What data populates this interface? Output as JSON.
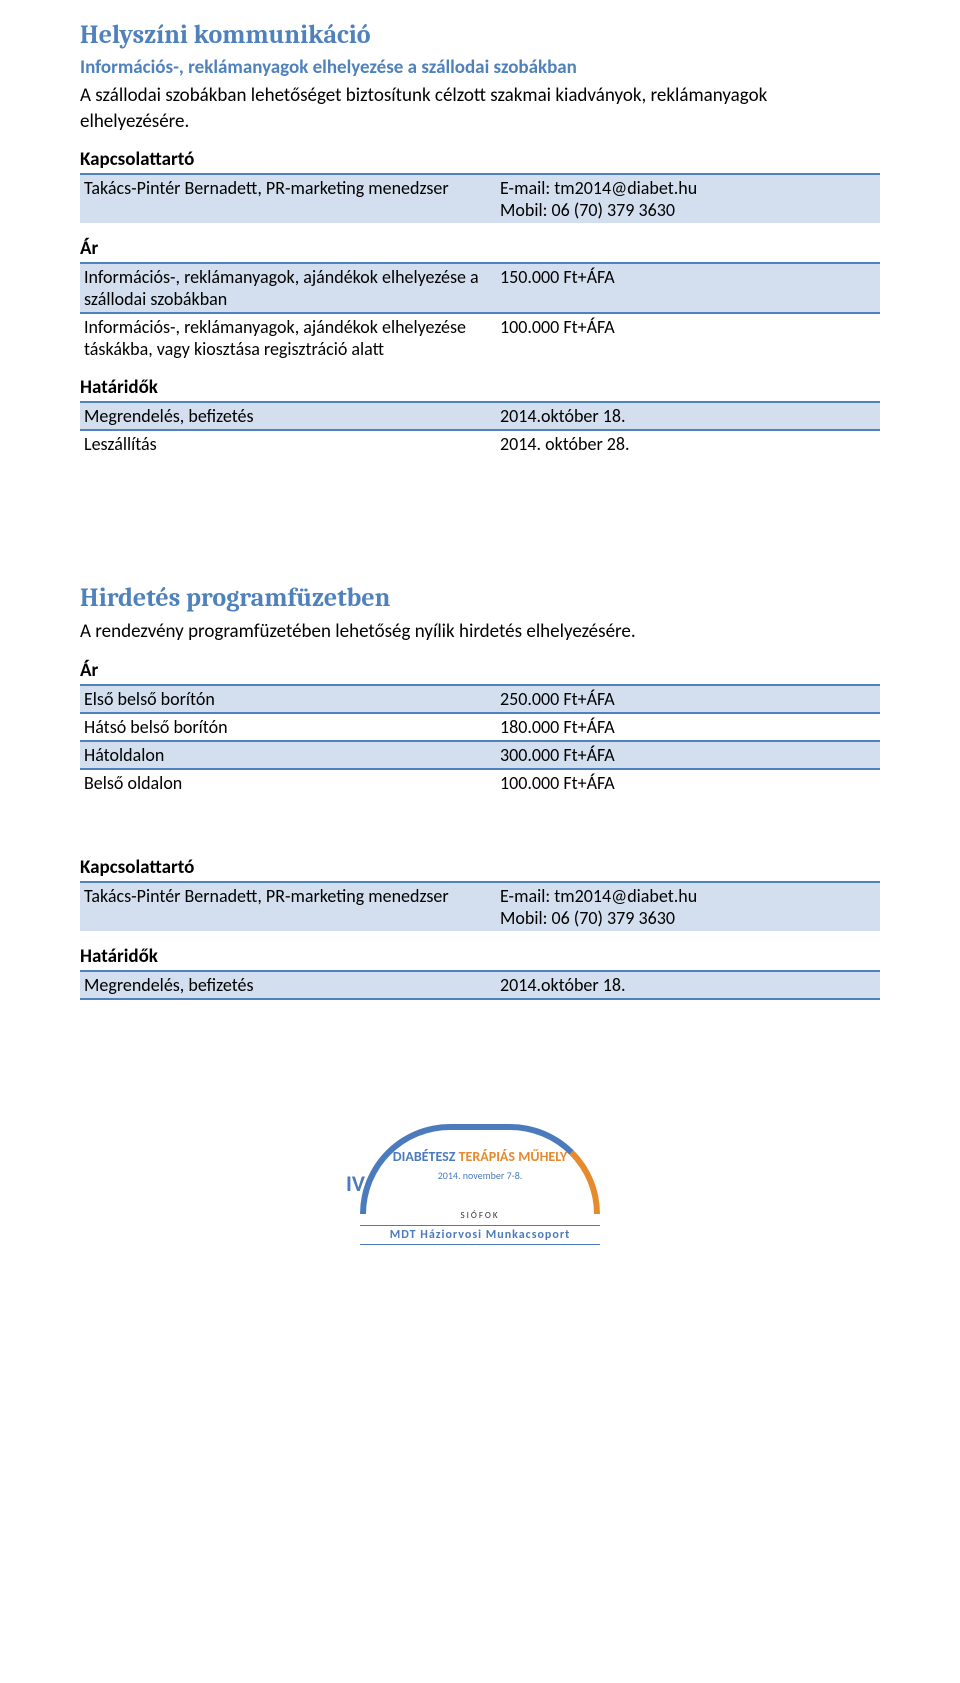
{
  "colors": {
    "title_color": "#4f81bd",
    "subtitle_color": "#4f81bd",
    "border_color": "#4f81bd",
    "row_shade": "#d3dfee",
    "body_text": "#000000"
  },
  "section1": {
    "title": "Helyszíni kommunikáció",
    "subtitle": "Információs-, reklámanyagok elhelyezése a szállodai szobákban",
    "body": "A szállodai szobákban lehetőséget biztosítunk célzott szakmai kiadványok, reklámanyagok elhelyezésére.",
    "contact_heading": "Kapcsolattartó",
    "contact_rows": [
      {
        "left": "Takács-Pintér Bernadett, PR-marketing menedzser",
        "right": "E-mail: tm2014@diabet.hu",
        "right2": "Mobil: 06 (70) 379 3630"
      }
    ],
    "price_heading": "Ár",
    "price_rows": [
      {
        "left": "Információs-, reklámanyagok, ajándékok elhelyezése a szállodai szobákban",
        "right": "150.000 Ft+ÁFA"
      },
      {
        "left": "Információs-, reklámanyagok, ajándékok elhelyezése táskákba, vagy kiosztása regisztráció alatt",
        "right": "100.000 Ft+ÁFA"
      }
    ],
    "deadline_heading": "Határidők",
    "deadline_rows": [
      {
        "left": "Megrendelés, befizetés",
        "right": "2014.október 18."
      },
      {
        "left": "Leszállítás",
        "right": "2014. október 28."
      }
    ]
  },
  "section2": {
    "title": "Hirdetés programfüzetben",
    "body": "A rendezvény programfüzetében lehetőség nyílik hirdetés elhelyezésére.",
    "price_heading": "Ár",
    "price_rows": [
      {
        "left": "Első belső borítón",
        "right": "250.000 Ft+ÁFA"
      },
      {
        "left": "Hátsó belső borítón",
        "right": "180.000 Ft+ÁFA"
      },
      {
        "left": "Hátoldalon",
        "right": "300.000 Ft+ÁFA"
      },
      {
        "left": "Belső oldalon",
        "right": "100.000 Ft+ÁFA"
      }
    ],
    "contact_heading": "Kapcsolattartó",
    "contact_rows": [
      {
        "left": "Takács-Pintér Bernadett, PR-marketing menedzser",
        "right": "E-mail: tm2014@diabet.hu",
        "right2": "Mobil: 06 (70) 379 3630"
      }
    ],
    "deadline_heading": "Határidők",
    "deadline_rows": [
      {
        "left": "Megrendelés, befizetés",
        "right": "2014.október 18."
      }
    ]
  },
  "logo": {
    "iv": "IV.",
    "line1": "DIABÉTESZ",
    "line2": "TERÁPIÁS MŰHELY",
    "date": "2014. november 7-8.",
    "city": "SIÓFOK",
    "subtitle": "MDT Háziorvosi Munkacsoport"
  }
}
